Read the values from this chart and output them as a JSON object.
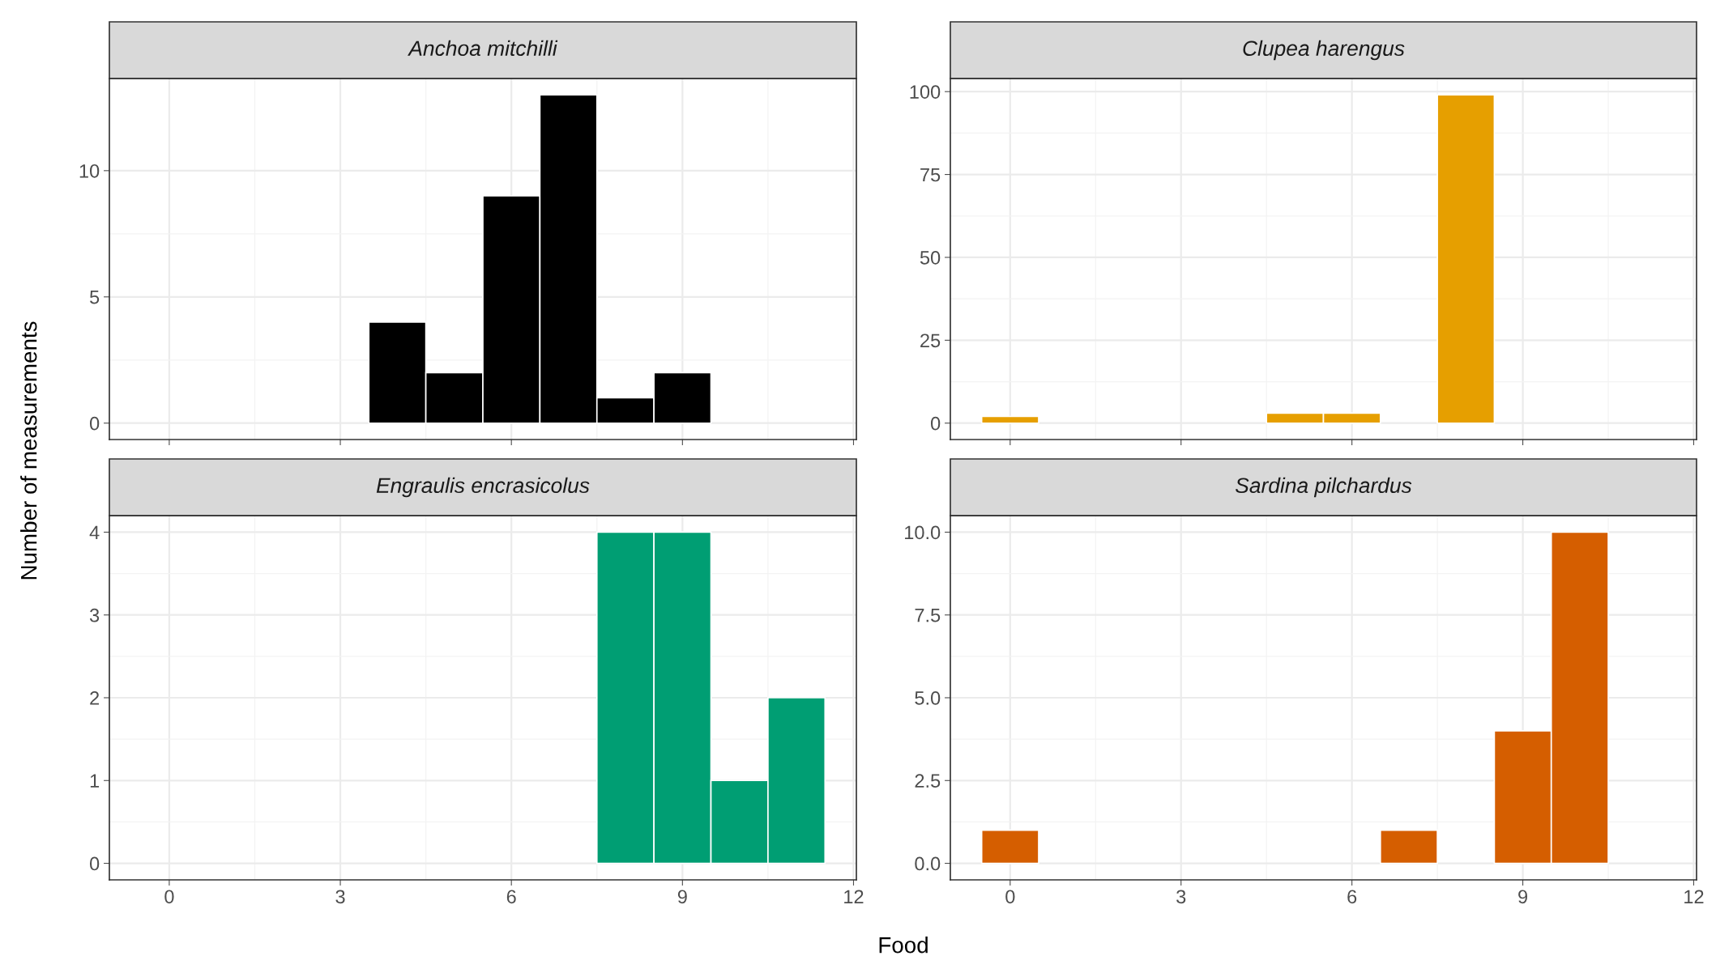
{
  "chart_data": [
    {
      "type": "histogram",
      "title": "Anchoa mitchilli",
      "ylabel": "Number of measurements",
      "bins": [
        3.5,
        4.5,
        5.5,
        6.5,
        7.5,
        8.5,
        9.5
      ],
      "values": [
        4,
        2,
        9,
        13,
        1,
        2
      ],
      "color": "#000000",
      "xlim": [
        -1.05,
        12.05
      ],
      "xticks": [
        0,
        3,
        6,
        9,
        12
      ],
      "ylim": [
        -0.65,
        13.65
      ],
      "yticks": [
        0,
        5,
        10
      ],
      "grid": true,
      "tick_labels": "y"
    },
    {
      "type": "histogram",
      "title": "Clupea harengus",
      "bins": [
        -0.5,
        0.5,
        1.5,
        2.5,
        3.5,
        4.5,
        5.5,
        6.5,
        7.5,
        8.5
      ],
      "values": [
        2,
        0,
        0,
        0,
        0,
        3,
        3,
        0,
        99
      ],
      "color": "#e69f00",
      "xlim": [
        -1.05,
        12.05
      ],
      "xticks": [
        0,
        3,
        6,
        9,
        12
      ],
      "ylim": [
        -4.95,
        103.95
      ],
      "yticks": [
        0,
        25,
        50,
        75,
        100
      ],
      "grid": true,
      "tick_labels": "y"
    },
    {
      "type": "histogram",
      "title": "Engraulis encrasicolus",
      "xlabel": "Food",
      "bins": [
        7.5,
        8.5,
        9.5,
        10.5,
        11.5
      ],
      "values": [
        4,
        4,
        1,
        2
      ],
      "color": "#009e73",
      "xlim": [
        -1.05,
        12.05
      ],
      "xticks": [
        0,
        3,
        6,
        9,
        12
      ],
      "ylim": [
        -0.2,
        4.2
      ],
      "yticks": [
        0,
        1,
        2,
        3,
        4
      ],
      "grid": true
    },
    {
      "type": "histogram",
      "title": "Sardina pilchardus",
      "bins": [
        -0.5,
        0.5,
        1.5,
        2.5,
        3.5,
        4.5,
        5.5,
        6.5,
        7.5,
        8.5,
        9.5,
        10.5
      ],
      "values": [
        1,
        0,
        0,
        0,
        0,
        0,
        0,
        1,
        0,
        4,
        10
      ],
      "color": "#d55e00",
      "xlim": [
        -1.05,
        12.05
      ],
      "xticks": [
        0,
        3,
        6,
        9,
        12
      ],
      "ylim": [
        -0.5,
        10.5
      ],
      "yticks": [
        {
          "value": 0,
          "label": "0.0"
        },
        {
          "value": 2.5,
          "label": "2.5"
        },
        {
          "value": 5,
          "label": "5.0"
        },
        {
          "value": 7.5,
          "label": "7.5"
        },
        {
          "value": 10,
          "label": "10.0"
        }
      ],
      "grid": true
    }
  ]
}
